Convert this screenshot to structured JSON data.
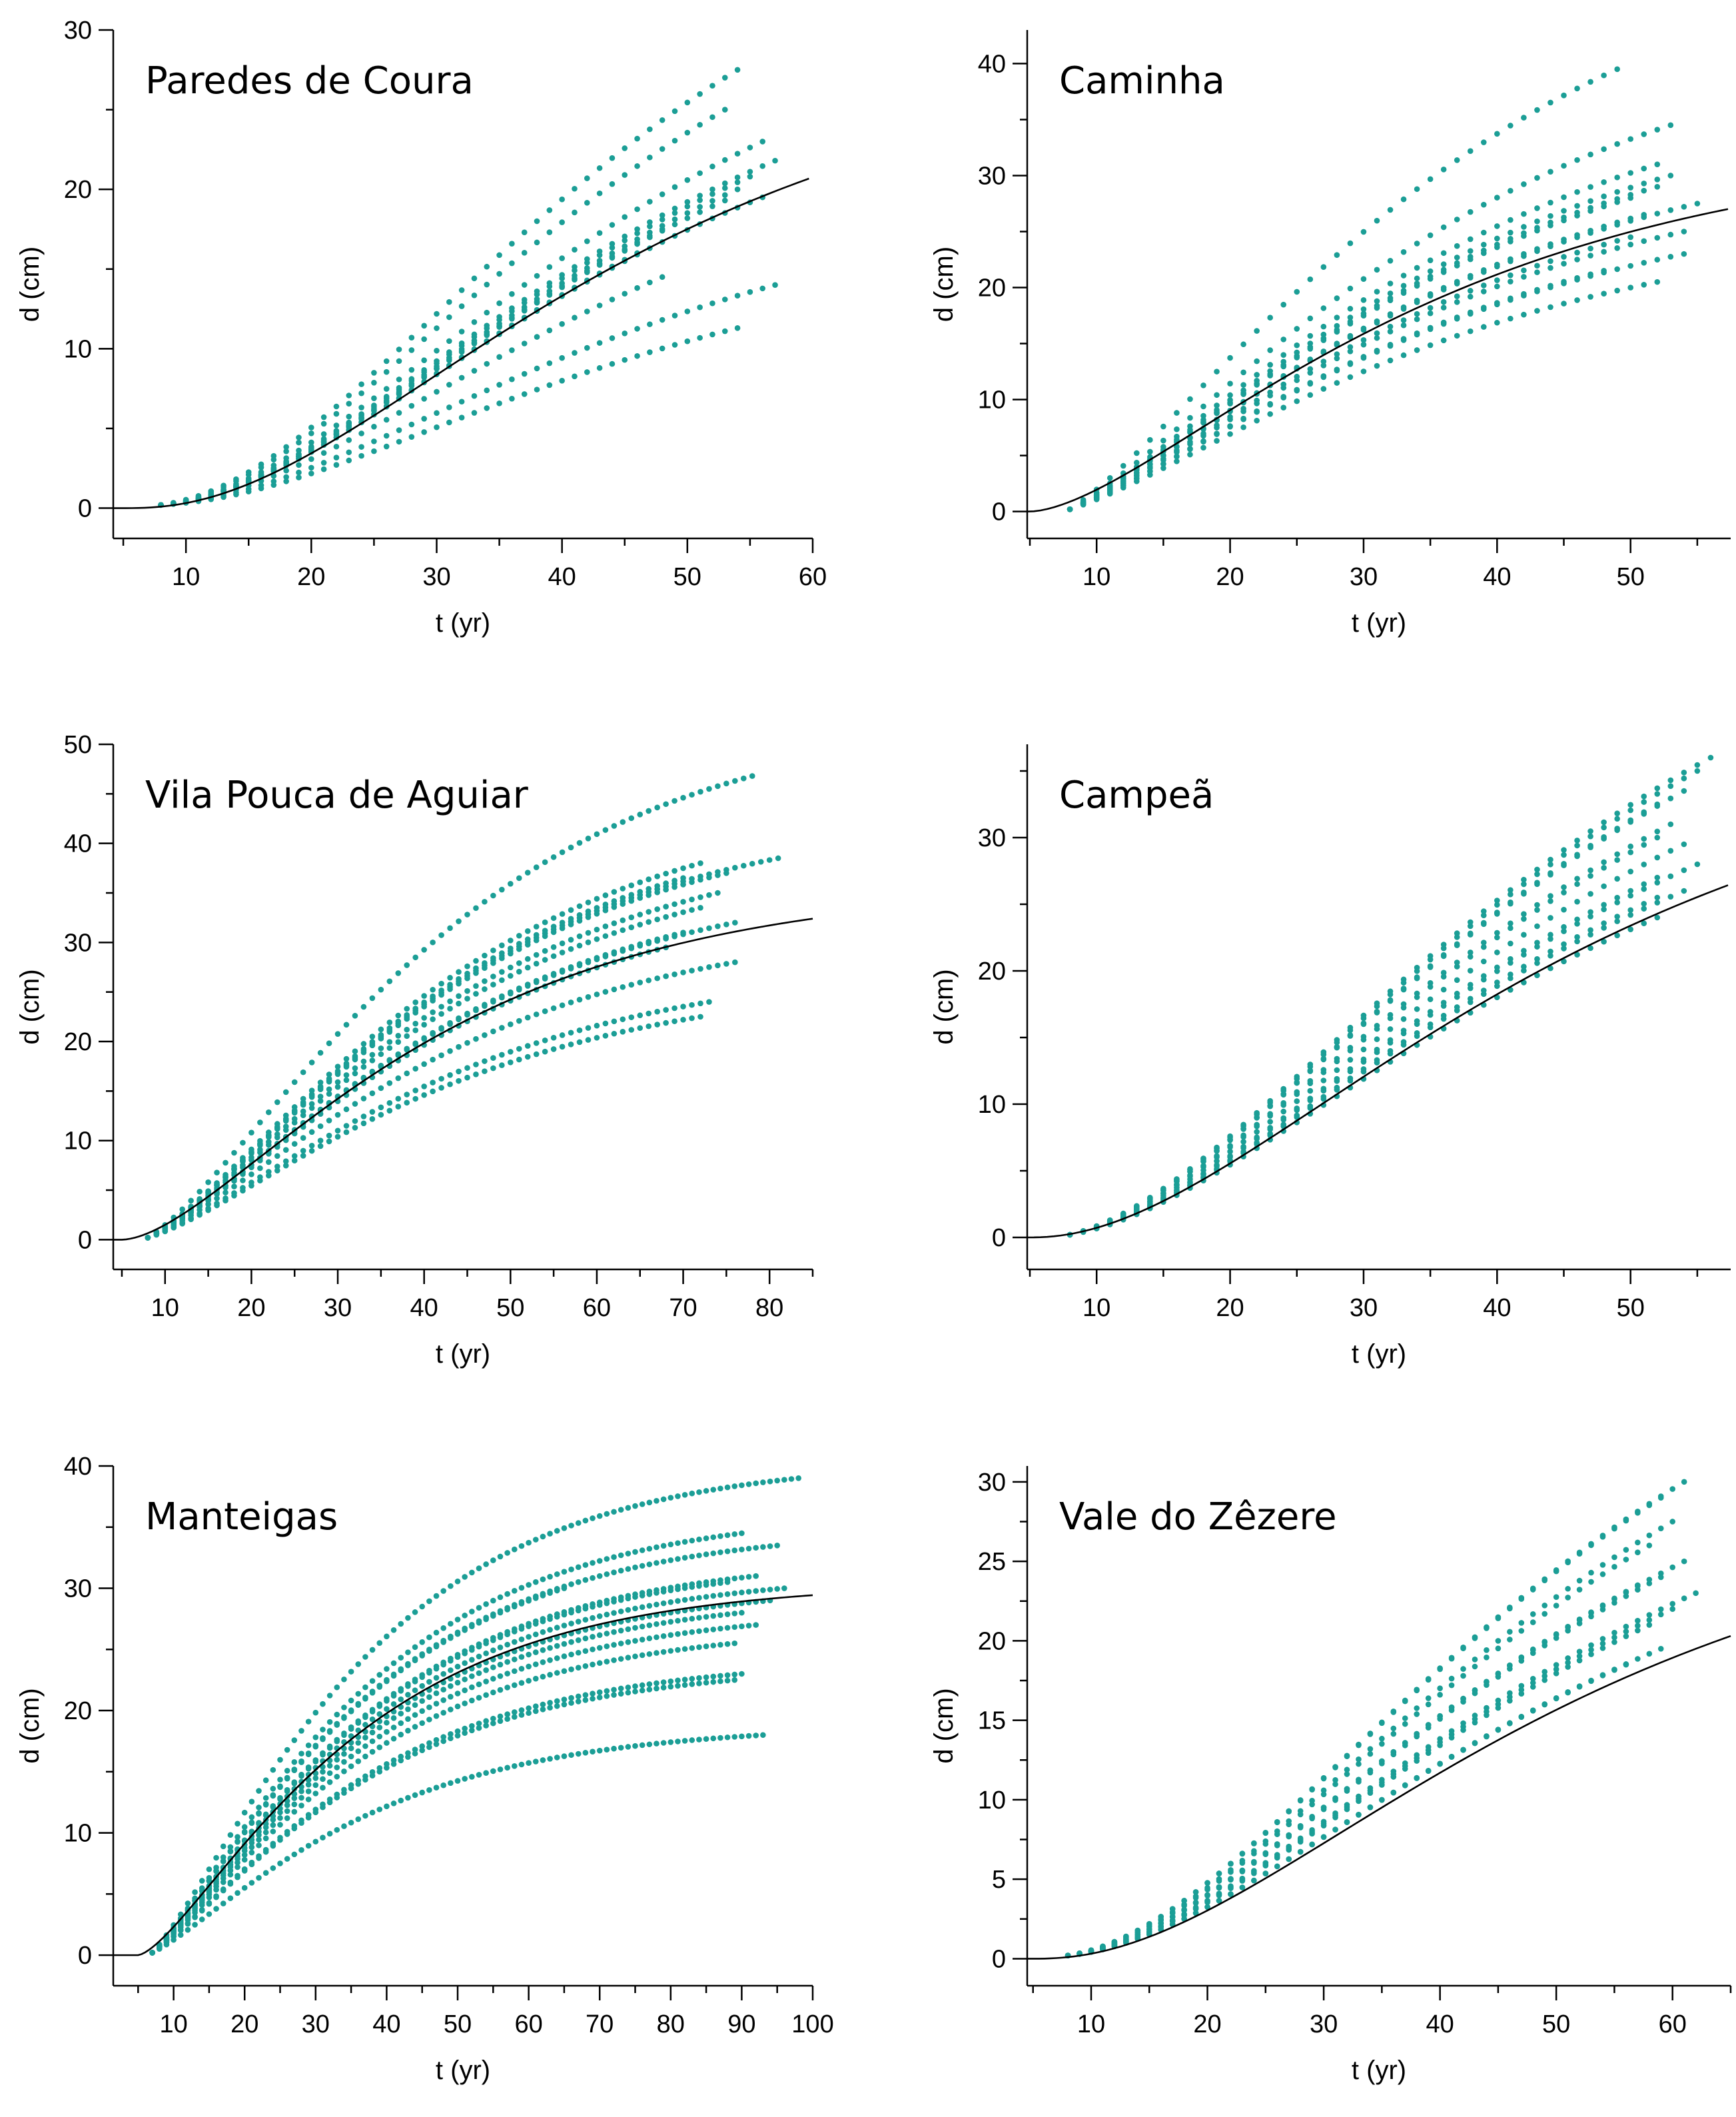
{
  "figure_description": "Diameter growth curves d (cm) vs age t (yr) for six sites",
  "colors": {
    "points": "#1b9e96",
    "fit": "#000000",
    "axes": "#000000"
  },
  "chart_data": [
    {
      "type": "scatter",
      "title": "Paredes de Coura",
      "xlabel": "t (yr)",
      "ylabel": "d (cm)",
      "xlim": [
        4.2,
        60
      ],
      "ylim": [
        -1.9,
        30
      ],
      "xticks": [
        10,
        20,
        30,
        40,
        50,
        60
      ],
      "xminor": 5,
      "yticks": [
        0,
        10,
        20,
        30
      ],
      "yminor": 5,
      "fit": {
        "x0": 5,
        "A": 28.75,
        "k": 0.0389,
        "c": 2.6,
        "xmax": 60
      },
      "series": [
        {
          "t_start": 8,
          "t_end": 54,
          "d_end": 27.5
        },
        {
          "t_start": 8,
          "t_end": 53,
          "d_end": 25
        },
        {
          "t_start": 8,
          "t_end": 56,
          "d_end": 23
        },
        {
          "t_start": 8,
          "t_end": 57,
          "d_end": 21.8
        },
        {
          "t_start": 8,
          "t_end": 55,
          "d_end": 20.8
        },
        {
          "t_start": 8,
          "t_end": 54,
          "d_end": 20
        },
        {
          "t_start": 8,
          "t_end": 53,
          "d_end": 19.3
        },
        {
          "t_start": 8,
          "t_end": 56,
          "d_end": 19.5
        },
        {
          "t_start": 8,
          "t_end": 48,
          "d_end": 17.5
        },
        {
          "t_start": 8,
          "t_end": 46,
          "d_end": 16
        },
        {
          "t_start": 8,
          "t_end": 48,
          "d_end": 14.5
        },
        {
          "t_start": 8,
          "t_end": 57,
          "d_end": 14
        },
        {
          "t_start": 8,
          "t_end": 54,
          "d_end": 11.3
        }
      ]
    },
    {
      "type": "scatter",
      "title": "Caminha",
      "xlabel": "t (yr)",
      "ylabel": "d (cm)",
      "xlim": [
        4.8,
        57.5
      ],
      "ylim": [
        -2.4,
        43
      ],
      "xticks": [
        10,
        20,
        30,
        40,
        50
      ],
      "xminor": 5,
      "yticks": [
        0,
        10,
        20,
        30,
        40
      ],
      "yminor": 5,
      "fit": {
        "x0": 5,
        "A": 33,
        "k": 0.042,
        "c": 1.7,
        "xmax": 57.5
      },
      "series": [
        {
          "t_start": 8,
          "t_end": 49,
          "d_end": 39.5
        },
        {
          "t_start": 8,
          "t_end": 53,
          "d_end": 34.5
        },
        {
          "t_start": 8,
          "t_end": 52,
          "d_end": 31
        },
        {
          "t_start": 8,
          "t_end": 53,
          "d_end": 30
        },
        {
          "t_start": 8,
          "t_end": 52,
          "d_end": 29
        },
        {
          "t_start": 8,
          "t_end": 50,
          "d_end": 28
        },
        {
          "t_start": 8,
          "t_end": 55,
          "d_end": 27.5
        },
        {
          "t_start": 8,
          "t_end": 51,
          "d_end": 26.5
        },
        {
          "t_start": 8,
          "t_end": 54,
          "d_end": 25
        },
        {
          "t_start": 8,
          "t_end": 50,
          "d_end": 24.5
        },
        {
          "t_start": 8,
          "t_end": 54,
          "d_end": 23
        },
        {
          "t_start": 8,
          "t_end": 48,
          "d_end": 21.5
        },
        {
          "t_start": 8,
          "t_end": 52,
          "d_end": 20.5
        }
      ]
    },
    {
      "type": "scatter",
      "title": "Vila Pouca de Aguiar",
      "xlabel": "t (yr)",
      "ylabel": "d (cm)",
      "xlim": [
        4,
        85
      ],
      "ylim": [
        -3,
        50
      ],
      "xticks": [
        10,
        20,
        30,
        40,
        50,
        60,
        70,
        80
      ],
      "xminor": 5,
      "yticks": [
        0,
        10,
        20,
        30,
        40,
        50
      ],
      "yminor": 5,
      "fit": {
        "x0": 5,
        "A": 36,
        "k": 0.0355,
        "c": 1.75,
        "xmax": 85
      },
      "series": [
        {
          "t_start": 8,
          "t_end": 78,
          "d_end": 46.8
        },
        {
          "t_start": 8,
          "t_end": 81,
          "d_end": 38.5
        },
        {
          "t_start": 8,
          "t_end": 72,
          "d_end": 38
        },
        {
          "t_start": 8,
          "t_end": 75,
          "d_end": 37
        },
        {
          "t_start": 8,
          "t_end": 70,
          "d_end": 36.5
        },
        {
          "t_start": 8,
          "t_end": 74,
          "d_end": 35
        },
        {
          "t_start": 8,
          "t_end": 72,
          "d_end": 33.5
        },
        {
          "t_start": 8,
          "t_end": 76,
          "d_end": 32
        },
        {
          "t_start": 8,
          "t_end": 70,
          "d_end": 31
        },
        {
          "t_start": 8,
          "t_end": 68,
          "d_end": 29.5
        },
        {
          "t_start": 8,
          "t_end": 76,
          "d_end": 28
        },
        {
          "t_start": 8,
          "t_end": 73,
          "d_end": 24
        },
        {
          "t_start": 8,
          "t_end": 72,
          "d_end": 22.5
        }
      ]
    },
    {
      "type": "scatter",
      "title": "Campeã",
      "xlabel": "t (yr)",
      "ylabel": "d (cm)",
      "xlim": [
        4.8,
        57.5
      ],
      "ylim": [
        -2.4,
        37
      ],
      "xticks": [
        10,
        20,
        30,
        40,
        50
      ],
      "xminor": 5,
      "yticks": [
        0,
        10,
        20,
        30
      ],
      "yminor": 5,
      "fit": {
        "x0": 5,
        "A": 38,
        "k": 0.036,
        "c": 2.2,
        "xmax": 57.5
      },
      "series": [
        {
          "t_start": 8,
          "t_end": 56,
          "d_end": 36
        },
        {
          "t_start": 8,
          "t_end": 55,
          "d_end": 35
        },
        {
          "t_start": 8,
          "t_end": 54,
          "d_end": 33.5
        },
        {
          "t_start": 8,
          "t_end": 52,
          "d_end": 32.5
        },
        {
          "t_start": 8,
          "t_end": 53,
          "d_end": 31
        },
        {
          "t_start": 8,
          "t_end": 52,
          "d_end": 30
        },
        {
          "t_start": 8,
          "t_end": 54,
          "d_end": 29.5
        },
        {
          "t_start": 8,
          "t_end": 55,
          "d_end": 28
        },
        {
          "t_start": 8,
          "t_end": 52,
          "d_end": 27
        },
        {
          "t_start": 8,
          "t_end": 54,
          "d_end": 26
        },
        {
          "t_start": 8,
          "t_end": 52,
          "d_end": 25.5
        },
        {
          "t_start": 8,
          "t_end": 52,
          "d_end": 24
        }
      ]
    },
    {
      "type": "scatter",
      "title": "Manteigas",
      "xlabel": "t (yr)",
      "ylabel": "d (cm)",
      "xlim": [
        1.5,
        100
      ],
      "ylim": [
        -2.5,
        40
      ],
      "xticks": [
        10,
        20,
        30,
        40,
        50,
        60,
        70,
        80,
        90,
        100
      ],
      "xminor": 5,
      "yticks": [
        0,
        10,
        20,
        30,
        40
      ],
      "yminor": 5,
      "fit": {
        "x0": 5,
        "A": 30.5,
        "k": 0.0395,
        "c": 1.5,
        "xmax": 100
      },
      "series": [
        {
          "t_start": 7,
          "t_end": 98,
          "d_end": 39
        },
        {
          "t_start": 7,
          "t_end": 90,
          "d_end": 34.5
        },
        {
          "t_start": 7,
          "t_end": 95,
          "d_end": 33.5
        },
        {
          "t_start": 7,
          "t_end": 92,
          "d_end": 31
        },
        {
          "t_start": 7,
          "t_end": 88,
          "d_end": 30.5
        },
        {
          "t_start": 7,
          "t_end": 96,
          "d_end": 30
        },
        {
          "t_start": 7,
          "t_end": 65,
          "d_end": 30
        },
        {
          "t_start": 7,
          "t_end": 94,
          "d_end": 29
        },
        {
          "t_start": 7,
          "t_end": 90,
          "d_end": 28
        },
        {
          "t_start": 7,
          "t_end": 92,
          "d_end": 27
        },
        {
          "t_start": 7,
          "t_end": 89,
          "d_end": 25.5
        },
        {
          "t_start": 7,
          "t_end": 90,
          "d_end": 23
        },
        {
          "t_start": 7,
          "t_end": 89,
          "d_end": 22.5
        },
        {
          "t_start": 7,
          "t_end": 93,
          "d_end": 18
        }
      ]
    },
    {
      "type": "scatter",
      "title": "Vale do Zêzere",
      "xlabel": "t (yr)",
      "ylabel": "d (cm)",
      "xlim": [
        4.5,
        65
      ],
      "ylim": [
        -1.7,
        31
      ],
      "xticks": [
        10,
        20,
        30,
        40,
        50,
        60
      ],
      "xminor": 5,
      "yticks": [
        0,
        5,
        10,
        15,
        20,
        25,
        30
      ],
      "yminor": 2.5,
      "fit": {
        "x0": 5,
        "A": 29,
        "k": 0.033,
        "c": 2.4,
        "xmax": 65
      },
      "series": [
        {
          "t_start": 8,
          "t_end": 61,
          "d_end": 30
        },
        {
          "t_start": 8,
          "t_end": 59,
          "d_end": 29
        },
        {
          "t_start": 8,
          "t_end": 60,
          "d_end": 27.5
        },
        {
          "t_start": 8,
          "t_end": 58,
          "d_end": 26
        },
        {
          "t_start": 8,
          "t_end": 61,
          "d_end": 25
        },
        {
          "t_start": 8,
          "t_end": 59,
          "d_end": 24
        },
        {
          "t_start": 8,
          "t_end": 57,
          "d_end": 23.5
        },
        {
          "t_start": 8,
          "t_end": 62,
          "d_end": 23
        },
        {
          "t_start": 8,
          "t_end": 60,
          "d_end": 22
        },
        {
          "t_start": 8,
          "t_end": 58,
          "d_end": 21
        },
        {
          "t_start": 8,
          "t_end": 59,
          "d_end": 19.5
        },
        {
          "t_start": 8,
          "t_end": 56,
          "d_end": 18.5
        }
      ]
    }
  ]
}
